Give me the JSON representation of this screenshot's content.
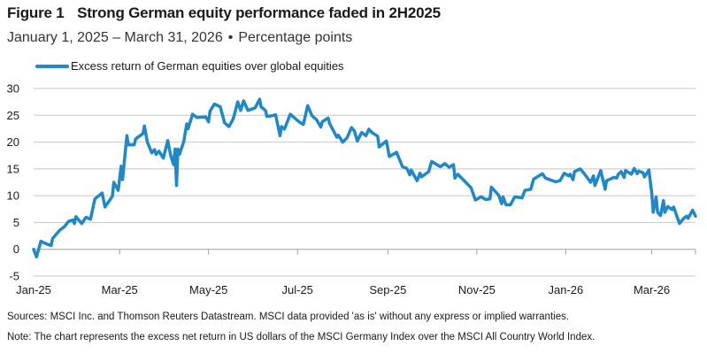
{
  "header": {
    "figure_label": "Figure 1",
    "title": "Strong German equity performance faded in 2H2025",
    "subtitle_range": "January 1, 2025 – March 31, 2026",
    "subtitle_separator": "•",
    "subtitle_unit": "Percentage points"
  },
  "footer": {
    "sources": "Sources: MSCI Inc. and Thomson Reuters Datastream. MSCI data provided 'as is' without any express or implied warranties.",
    "note": "Note: The chart represents the excess net return in US dollars of the MSCI Germany Index over the MSCI All Country World Index."
  },
  "chart_data": {
    "type": "line",
    "title": "Strong German equity performance faded in 2H2025",
    "xlabel": "",
    "ylabel": "Percentage points",
    "xlim": [
      "2025-01-01",
      "2026-03-31"
    ],
    "ylim": [
      -5,
      30
    ],
    "yticks": [
      -5,
      0,
      5,
      10,
      15,
      20,
      25,
      30
    ],
    "xticks": [
      {
        "date": "2025-01-01",
        "label": "Jan-25"
      },
      {
        "date": "2025-03-01",
        "label": "Mar-25"
      },
      {
        "date": "2025-05-01",
        "label": "May-25"
      },
      {
        "date": "2025-07-01",
        "label": "Jul-25"
      },
      {
        "date": "2025-09-01",
        "label": "Sep-25"
      },
      {
        "date": "2025-11-01",
        "label": "Nov-25"
      },
      {
        "date": "2026-01-01",
        "label": "Jan-26"
      },
      {
        "date": "2026-03-01",
        "label": "Mar-26"
      }
    ],
    "grid": "horizontal",
    "legend": "top",
    "series": [
      {
        "name": "Excess return of German equities over global equities",
        "color": "#1f88c8",
        "points": [
          [
            "2025-01-01",
            0
          ],
          [
            "2025-01-03",
            -1.4
          ],
          [
            "2025-01-06",
            1.5
          ],
          [
            "2025-01-10",
            1.0
          ],
          [
            "2025-01-13",
            0.7
          ],
          [
            "2025-01-14",
            2.0
          ],
          [
            "2025-01-19",
            3.6
          ],
          [
            "2025-01-22",
            4.2
          ],
          [
            "2025-01-25",
            5.2
          ],
          [
            "2025-01-28",
            5.5
          ],
          [
            "2025-01-29",
            4.8
          ],
          [
            "2025-01-30",
            6.1
          ],
          [
            "2025-02-03",
            4.8
          ],
          [
            "2025-02-06",
            6.0
          ],
          [
            "2025-02-09",
            5.6
          ],
          [
            "2025-02-12",
            9.4
          ],
          [
            "2025-02-17",
            10.5
          ],
          [
            "2025-02-19",
            7.9
          ],
          [
            "2025-02-24",
            9.9
          ],
          [
            "2025-02-25",
            12.5
          ],
          [
            "2025-02-28",
            11.0
          ],
          [
            "2025-03-02",
            15.5
          ],
          [
            "2025-03-03",
            13.0
          ],
          [
            "2025-03-06",
            21.2
          ],
          [
            "2025-03-07",
            19.5
          ],
          [
            "2025-03-11",
            19.5
          ],
          [
            "2025-03-12",
            20.6
          ],
          [
            "2025-03-17",
            21.6
          ],
          [
            "2025-03-18",
            23.0
          ],
          [
            "2025-03-20",
            20.0
          ],
          [
            "2025-03-23",
            18.0
          ],
          [
            "2025-03-25",
            18.6
          ],
          [
            "2025-03-26",
            17.7
          ],
          [
            "2025-03-28",
            18.3
          ],
          [
            "2025-03-31",
            17.0
          ],
          [
            "2025-04-03",
            20.3
          ],
          [
            "2025-04-05",
            17.5
          ],
          [
            "2025-04-07",
            15.8
          ],
          [
            "2025-04-08",
            18.7
          ],
          [
            "2025-04-09",
            11.9
          ],
          [
            "2025-04-10",
            18.7
          ],
          [
            "2025-04-11",
            17.7
          ],
          [
            "2025-04-14",
            20.1
          ],
          [
            "2025-04-16",
            23.4
          ],
          [
            "2025-04-17",
            22.5
          ],
          [
            "2025-04-20",
            25.2
          ],
          [
            "2025-04-23",
            24.6
          ],
          [
            "2025-04-29",
            24.7
          ],
          [
            "2025-05-01",
            23.8
          ],
          [
            "2025-05-02",
            25.8
          ],
          [
            "2025-05-05",
            27.1
          ],
          [
            "2025-05-09",
            26.6
          ],
          [
            "2025-05-12",
            23.6
          ],
          [
            "2025-05-15",
            22.9
          ],
          [
            "2025-05-18",
            24.4
          ],
          [
            "2025-05-21",
            27.5
          ],
          [
            "2025-05-23",
            25.9
          ],
          [
            "2025-05-25",
            27.7
          ],
          [
            "2025-05-28",
            25.9
          ],
          [
            "2025-06-02",
            26.4
          ],
          [
            "2025-06-05",
            28.0
          ],
          [
            "2025-06-06",
            26.6
          ],
          [
            "2025-06-09",
            25.9
          ],
          [
            "2025-06-10",
            24.8
          ],
          [
            "2025-06-13",
            24.9
          ],
          [
            "2025-06-16",
            25.1
          ],
          [
            "2025-06-19",
            21.2
          ],
          [
            "2025-06-20",
            22.9
          ],
          [
            "2025-06-22",
            22.4
          ],
          [
            "2025-06-24",
            23.8
          ],
          [
            "2025-06-26",
            25.2
          ],
          [
            "2025-07-02",
            23.8
          ],
          [
            "2025-07-05",
            23.3
          ],
          [
            "2025-07-08",
            26.8
          ],
          [
            "2025-07-11",
            24.9
          ],
          [
            "2025-07-14",
            24.2
          ],
          [
            "2025-07-17",
            22.8
          ],
          [
            "2025-07-18",
            23.8
          ],
          [
            "2025-07-22",
            24.5
          ],
          [
            "2025-07-23",
            23.5
          ],
          [
            "2025-07-28",
            20.9
          ],
          [
            "2025-07-29",
            21.3
          ],
          [
            "2025-08-01",
            20.0
          ],
          [
            "2025-08-04",
            20.8
          ],
          [
            "2025-08-07",
            22.7
          ],
          [
            "2025-08-09",
            22.1
          ],
          [
            "2025-08-11",
            20.2
          ],
          [
            "2025-08-14",
            21.8
          ],
          [
            "2025-08-17",
            21.2
          ],
          [
            "2025-08-19",
            22.4
          ],
          [
            "2025-08-21",
            21.8
          ],
          [
            "2025-08-25",
            21.1
          ],
          [
            "2025-08-26",
            19.1
          ],
          [
            "2025-08-31",
            20.2
          ],
          [
            "2025-09-02",
            17.3
          ],
          [
            "2025-09-07",
            18.1
          ],
          [
            "2025-09-11",
            15.4
          ],
          [
            "2025-09-14",
            15.1
          ],
          [
            "2025-09-16",
            13.9
          ],
          [
            "2025-09-17",
            14.8
          ],
          [
            "2025-09-21",
            12.8
          ],
          [
            "2025-09-23",
            14.2
          ],
          [
            "2025-09-24",
            13.5
          ],
          [
            "2025-09-29",
            14.5
          ],
          [
            "2025-10-01",
            16.4
          ],
          [
            "2025-10-07",
            15.4
          ],
          [
            "2025-10-10",
            16.0
          ],
          [
            "2025-10-13",
            15.3
          ],
          [
            "2025-10-16",
            15.8
          ],
          [
            "2025-10-17",
            13.3
          ],
          [
            "2025-10-19",
            14.0
          ],
          [
            "2025-10-24",
            12.6
          ],
          [
            "2025-10-28",
            11.5
          ],
          [
            "2025-10-31",
            9.2
          ],
          [
            "2025-11-04",
            9.8
          ],
          [
            "2025-11-07",
            9.3
          ],
          [
            "2025-11-10",
            9.4
          ],
          [
            "2025-11-11",
            11.6
          ],
          [
            "2025-11-16",
            10.1
          ],
          [
            "2025-11-18",
            8.5
          ],
          [
            "2025-11-19",
            9.8
          ],
          [
            "2025-11-21",
            8.3
          ],
          [
            "2025-11-24",
            8.3
          ],
          [
            "2025-11-27",
            9.8
          ],
          [
            "2025-12-02",
            9.6
          ],
          [
            "2025-12-04",
            11.0
          ],
          [
            "2025-12-08",
            11.2
          ],
          [
            "2025-12-10",
            13.1
          ],
          [
            "2025-12-16",
            14.1
          ],
          [
            "2025-12-18",
            13.3
          ],
          [
            "2025-12-25",
            12.6
          ],
          [
            "2025-12-28",
            12.8
          ],
          [
            "2025-12-31",
            14.2
          ],
          [
            "2026-01-03",
            13.7
          ],
          [
            "2026-01-04",
            14.0
          ],
          [
            "2026-01-06",
            13.0
          ],
          [
            "2026-01-07",
            14.5
          ],
          [
            "2026-01-11",
            15.0
          ],
          [
            "2026-01-14",
            14.0
          ],
          [
            "2026-01-18",
            12.5
          ],
          [
            "2026-01-20",
            13.7
          ],
          [
            "2026-01-21",
            11.9
          ],
          [
            "2026-01-25",
            14.7
          ],
          [
            "2026-01-28",
            11.2
          ],
          [
            "2026-01-29",
            12.8
          ],
          [
            "2026-02-03",
            13.4
          ],
          [
            "2026-02-05",
            13.3
          ],
          [
            "2026-02-06",
            14.0
          ],
          [
            "2026-02-08",
            14.5
          ],
          [
            "2026-02-10",
            13.4
          ],
          [
            "2026-02-11",
            14.7
          ],
          [
            "2026-02-15",
            14.0
          ],
          [
            "2026-02-17",
            15.1
          ],
          [
            "2026-02-19",
            14.1
          ],
          [
            "2026-02-20",
            14.6
          ],
          [
            "2026-02-23",
            14.3
          ],
          [
            "2026-02-24",
            13.5
          ],
          [
            "2026-02-27",
            14.8
          ],
          [
            "2026-03-01",
            10.4
          ],
          [
            "2026-03-02",
            6.9
          ],
          [
            "2026-03-04",
            9.8
          ],
          [
            "2026-03-05",
            6.9
          ],
          [
            "2026-03-07",
            6.3
          ],
          [
            "2026-03-09",
            9.1
          ],
          [
            "2026-03-10",
            6.9
          ],
          [
            "2026-03-12",
            8.0
          ],
          [
            "2026-03-15",
            7.4
          ],
          [
            "2026-03-16",
            7.9
          ],
          [
            "2026-03-20",
            4.8
          ],
          [
            "2026-03-23",
            5.8
          ],
          [
            "2026-03-25",
            6.2
          ],
          [
            "2026-03-26",
            5.8
          ],
          [
            "2026-03-29",
            7.3
          ],
          [
            "2026-03-31",
            6.2
          ]
        ]
      }
    ]
  }
}
